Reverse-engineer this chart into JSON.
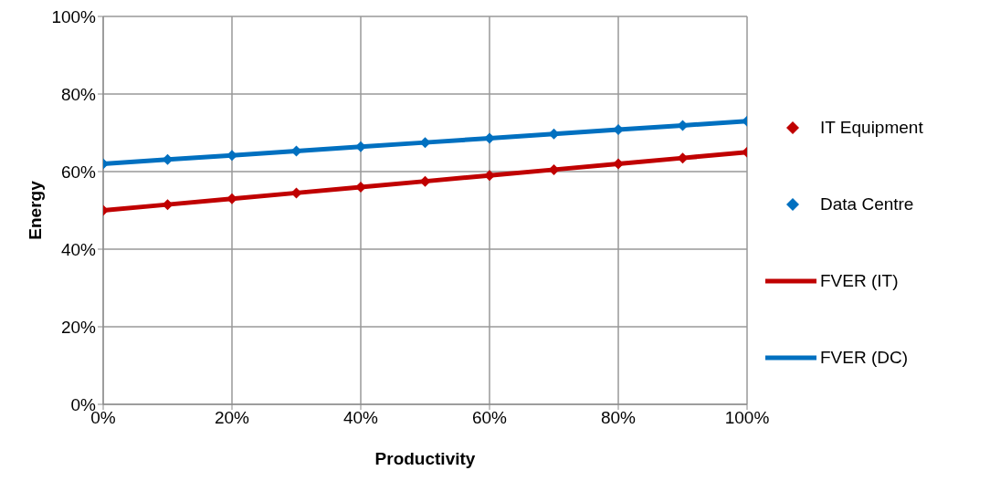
{
  "chart_data": {
    "type": "line",
    "xlabel": "Productivity",
    "ylabel": "Energy",
    "x": [
      0,
      10,
      20,
      30,
      40,
      50,
      60,
      70,
      80,
      90,
      100
    ],
    "series": [
      {
        "name": "IT Equipment",
        "type": "scatter",
        "marker": "diamond",
        "color": "#c00000",
        "values": [
          50,
          51.5,
          53,
          54.5,
          56,
          57.5,
          59,
          60.5,
          62,
          63.5,
          65
        ]
      },
      {
        "name": "Data Centre",
        "type": "scatter",
        "marker": "diamond",
        "color": "#0070c0",
        "values": [
          62,
          63.1,
          64.2,
          65.3,
          66.4,
          67.5,
          68.6,
          69.7,
          70.8,
          71.9,
          73
        ]
      },
      {
        "name": "FVER (IT)",
        "marker": "none",
        "color": "#c00000",
        "values": [
          50,
          51.5,
          53,
          54.5,
          56,
          57.5,
          59,
          60.5,
          62,
          63.5,
          65
        ]
      },
      {
        "name": "FVER (DC)",
        "marker": "none",
        "color": "#0070c0",
        "values": [
          62,
          63.1,
          64.2,
          65.3,
          66.4,
          67.5,
          68.6,
          69.7,
          70.8,
          71.9,
          73
        ]
      }
    ],
    "xlim": [
      0,
      100
    ],
    "xticks": [
      {
        "value": 0,
        "label": "0%"
      },
      {
        "value": 20,
        "label": "20%"
      },
      {
        "value": 40,
        "label": "40%"
      },
      {
        "value": 60,
        "label": "60%"
      },
      {
        "value": 80,
        "label": "80%"
      },
      {
        "value": 100,
        "label": "100%"
      }
    ],
    "ylim": [
      0,
      100
    ],
    "yticks": [
      {
        "value": 0,
        "label": "0%"
      },
      {
        "value": 20,
        "label": "20%"
      },
      {
        "value": 40,
        "label": "40%"
      },
      {
        "value": 60,
        "label": "60%"
      },
      {
        "value": 80,
        "label": "80%"
      },
      {
        "value": 100,
        "label": "100%"
      }
    ],
    "grid": true,
    "legend": "right",
    "line_style": "solid"
  }
}
